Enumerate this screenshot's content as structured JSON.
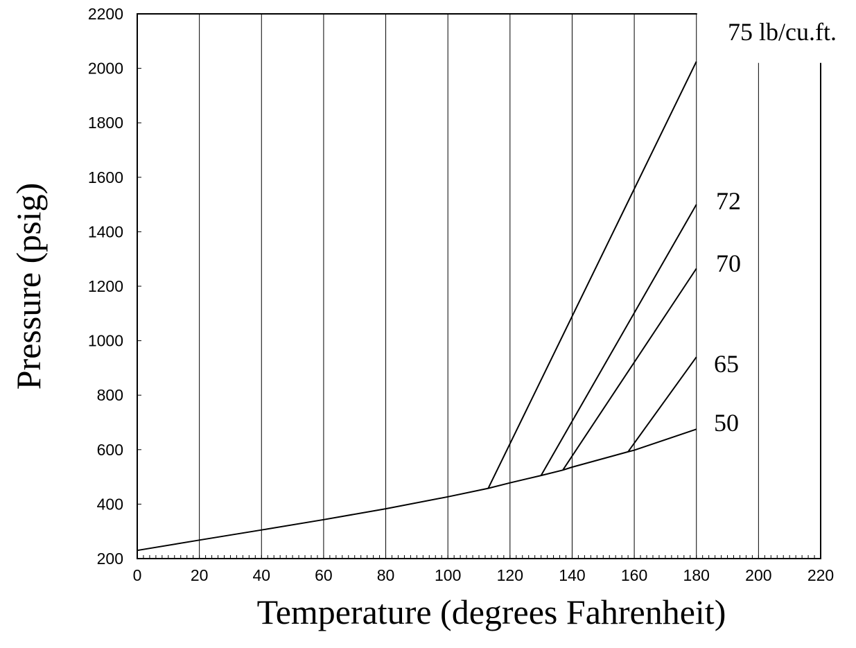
{
  "chart_data": {
    "type": "line",
    "title": "",
    "xlabel": "Temperature (degrees Fahrenheit)",
    "ylabel": "Pressure  (psig)",
    "xlim": [
      0,
      220
    ],
    "ylim": [
      200,
      2200
    ],
    "x_ticks": [
      "0",
      "20",
      "40",
      "60",
      "80",
      "100",
      "120",
      "140",
      "160",
      "180",
      "200",
      "220"
    ],
    "y_ticks": [
      "200",
      "400",
      "600",
      "800",
      "1000",
      "1200",
      "1400",
      "1600",
      "1800",
      "2000",
      "2200"
    ],
    "vertical_grid": true,
    "horizontal_grid": false,
    "series": [
      {
        "name": "50",
        "points": [
          [
            0,
            230
          ],
          [
            20,
            268
          ],
          [
            40,
            305
          ],
          [
            60,
            343
          ],
          [
            80,
            383
          ],
          [
            100,
            427
          ],
          [
            113,
            458
          ],
          [
            120,
            478
          ],
          [
            130,
            505
          ],
          [
            137,
            525
          ],
          [
            140,
            536
          ],
          [
            158,
            592
          ],
          [
            160,
            598
          ],
          [
            180,
            675
          ]
        ]
      },
      {
        "name": "65",
        "points": [
          [
            158,
            592
          ],
          [
            180,
            940
          ]
        ]
      },
      {
        "name": "70",
        "points": [
          [
            137,
            525
          ],
          [
            180,
            1265
          ]
        ]
      },
      {
        "name": "72",
        "points": [
          [
            130,
            505
          ],
          [
            180,
            1500
          ]
        ]
      },
      {
        "name": "75 lb/cu.ft.",
        "points": [
          [
            113,
            458
          ],
          [
            180,
            2025
          ]
        ]
      }
    ]
  }
}
